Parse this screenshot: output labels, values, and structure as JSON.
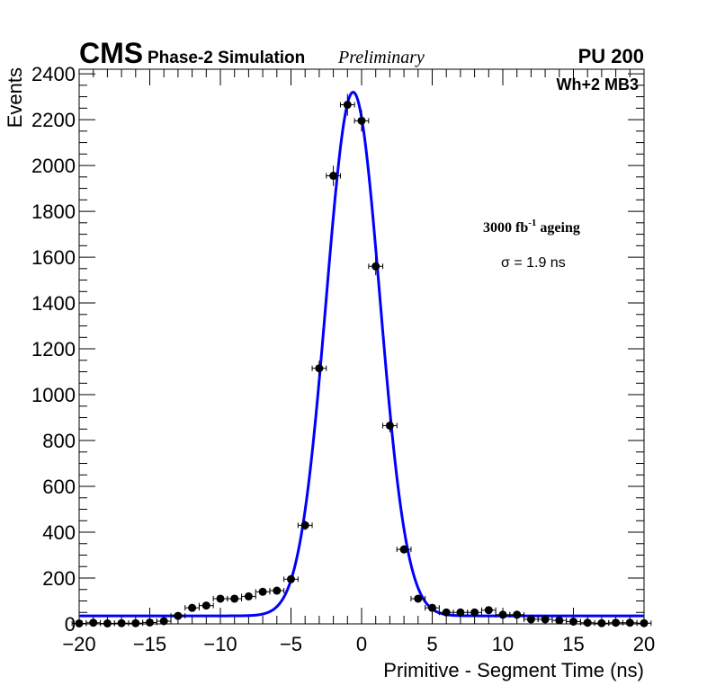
{
  "header": {
    "experiment": "CMS",
    "simulation": "Phase-2 Simulation",
    "status": "Preliminary",
    "pileup": "PU 200",
    "chamber": "Wh+2 MB3",
    "ageing_main": "3000 fb",
    "ageing_sup": "-1",
    "ageing_tail": " ageing",
    "sigma": "σ = 1.9 ns"
  },
  "chart_data": {
    "type": "scatter",
    "title": "",
    "xlabel": "Primitive - Segment Time (ns)",
    "ylabel": "Events",
    "xlim": [
      -20,
      20
    ],
    "ylim": [
      0,
      2420
    ],
    "xticks": [
      -20,
      -15,
      -10,
      -5,
      0,
      5,
      10,
      15,
      20
    ],
    "xtick_labels": [
      "−20",
      "−15",
      "−10",
      "−5",
      "0",
      "5",
      "10",
      "15",
      "20"
    ],
    "yticks": [
      0,
      200,
      400,
      600,
      800,
      1000,
      1200,
      1400,
      1600,
      1800,
      2000,
      2200,
      2400
    ],
    "ytick_labels": [
      "0",
      "200",
      "400",
      "600",
      "800",
      "1000",
      "1200",
      "1400",
      "1600",
      "1800",
      "2000",
      "2200",
      "2400"
    ],
    "series": [
      {
        "name": "Data",
        "x": [
          -20,
          -19,
          -18,
          -17,
          -16,
          -15,
          -14,
          -13,
          -12,
          -11,
          -10,
          -9,
          -8,
          -7,
          -6,
          -5,
          -4,
          -3,
          -2,
          -1,
          0,
          1,
          2,
          3,
          4,
          5,
          6,
          7,
          8,
          9,
          10,
          11,
          12,
          13,
          14,
          15,
          16,
          17,
          18,
          19,
          20
        ],
        "y": [
          2,
          5,
          2,
          3,
          3,
          6,
          12,
          35,
          70,
          80,
          110,
          110,
          120,
          140,
          145,
          195,
          430,
          1115,
          1955,
          2265,
          2195,
          1560,
          865,
          325,
          110,
          70,
          50,
          50,
          50,
          60,
          40,
          40,
          20,
          20,
          15,
          10,
          5,
          3,
          5,
          5,
          3
        ],
        "yerr": [
          2,
          3,
          2,
          2,
          2,
          3,
          4,
          6,
          8,
          9,
          10,
          10,
          11,
          12,
          12,
          14,
          21,
          33,
          44,
          48,
          47,
          39,
          29,
          18,
          10,
          8,
          7,
          7,
          7,
          8,
          6,
          6,
          5,
          5,
          4,
          3,
          2,
          2,
          2,
          2,
          2
        ],
        "xerr": 0.5,
        "color": "#000000"
      },
      {
        "name": "Gaussian fit",
        "kind": "line",
        "model": "gaussian + constant",
        "mean": -0.6,
        "sigma": 1.9,
        "amplitude": 2285,
        "constant": 35,
        "color": "#0000ff"
      }
    ]
  }
}
